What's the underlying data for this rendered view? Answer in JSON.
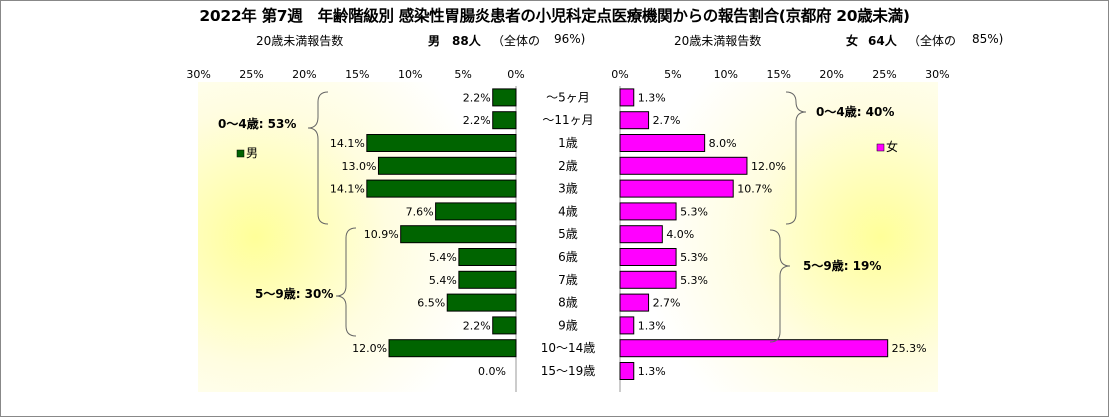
{
  "title": "2022年 第7週　年齢階級別 感染性胃腸炎患者の小児科定点医療機関からの報告割合(京都府 20歳未満)",
  "header": {
    "left_caption": "20歳未満報告数",
    "left_sex": "男",
    "left_count": "88人",
    "left_share_label": "（全体の",
    "left_share_value": "96%)",
    "right_caption": "20歳未満報告数",
    "right_sex": "女",
    "right_count": "64人",
    "right_share_label": "（全体の",
    "right_share_value": "85%)"
  },
  "chart_data": {
    "type": "bar",
    "title": "2022年 第7週　年齢階級別 感染性胃腸炎患者の小児科定点医療機関からの報告割合(京都府 20歳未満)",
    "categories": [
      "～5ヶ月",
      "～11ヶ月",
      "1歳",
      "2歳",
      "3歳",
      "4歳",
      "5歳",
      "6歳",
      "7歳",
      "8歳",
      "9歳",
      "10～14歳",
      "15～19歳"
    ],
    "x_ticks": [
      "30%",
      "25%",
      "20%",
      "15%",
      "10%",
      "5%",
      "0%"
    ],
    "x_ticks_right": [
      "0%",
      "5%",
      "10%",
      "15%",
      "20%",
      "25%",
      "30%"
    ],
    "xlim": [
      0,
      30
    ],
    "series": [
      {
        "name": "男",
        "color": "#006400",
        "values": [
          2.2,
          2.2,
          14.1,
          13.0,
          14.1,
          7.6,
          10.9,
          5.4,
          5.4,
          6.5,
          2.2,
          12.0,
          0.0
        ],
        "labels": [
          "2.2%",
          "2.2%",
          "14.1%",
          "13.0%",
          "14.1%",
          "7.6%",
          "10.9%",
          "5.4%",
          "5.4%",
          "6.5%",
          "2.2%",
          "12.0%",
          "0.0%"
        ]
      },
      {
        "name": "女",
        "color": "#ff00ff",
        "values": [
          1.3,
          2.7,
          8.0,
          12.0,
          10.7,
          5.3,
          4.0,
          5.3,
          5.3,
          2.7,
          1.3,
          25.3,
          1.3
        ],
        "labels": [
          "1.3%",
          "2.7%",
          "8.0%",
          "12.0%",
          "10.7%",
          "5.3%",
          "4.0%",
          "5.3%",
          "5.3%",
          "2.7%",
          "1.3%",
          "25.3%",
          "1.3%"
        ]
      }
    ],
    "annotations": {
      "male_0_4": "0～4歳: 53%",
      "male_5_9": "5～9歳: 30%",
      "female_0_4": "0～4歳: 40%",
      "female_5_9": "5～9歳: 19%"
    },
    "legend": [
      "男",
      "女"
    ],
    "grid": false
  }
}
